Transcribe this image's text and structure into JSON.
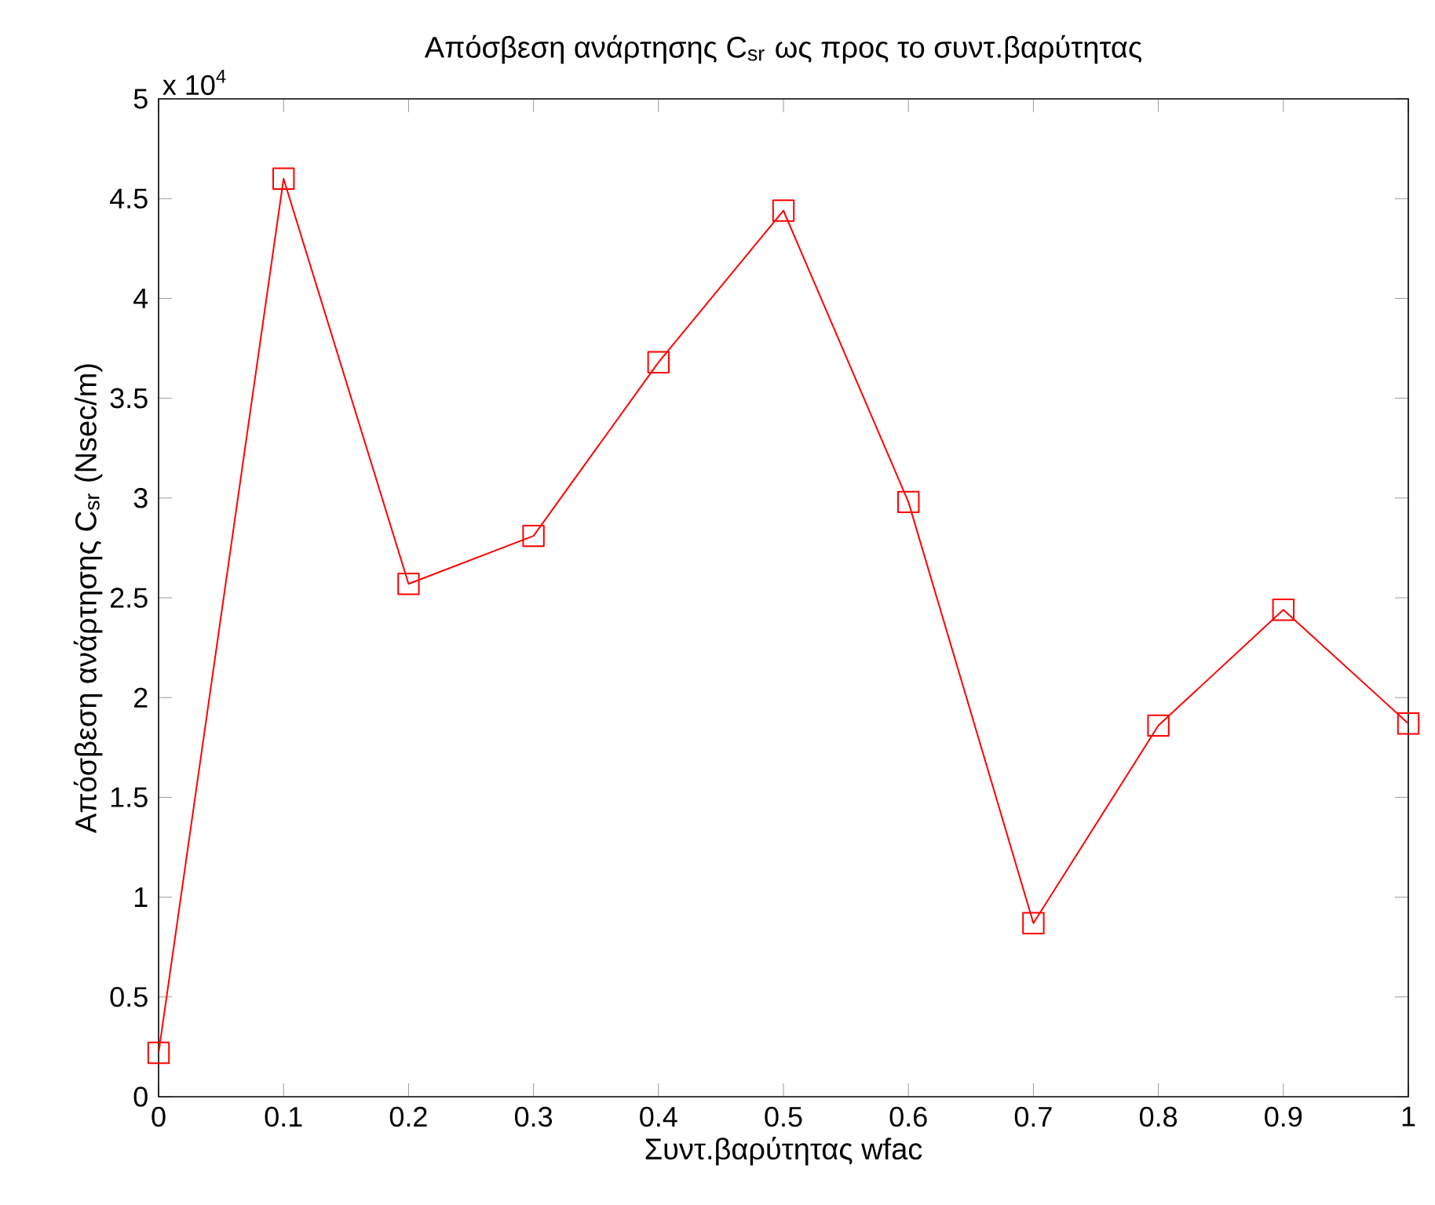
{
  "chart_data": {
    "type": "line",
    "title": "Απόσβεση ανάρτησης C$_{sr}$ ως προς το συντ.βαρύτητας",
    "xlabel": "Συντ.βαρύτητας wfac",
    "ylabel": "Απόσβεση ανάρτησης C$_{sr}$  (Nsec/m)",
    "annotations": [
      "x 10$^{4}$"
    ],
    "x": [
      0,
      0.1,
      0.2,
      0.3,
      0.4,
      0.5,
      0.6,
      0.7,
      0.8,
      0.9,
      1
    ],
    "series": [
      {
        "color": "#ff0000",
        "values": [
          0.22,
          4.6,
          2.57,
          2.81,
          3.68,
          4.44,
          2.98,
          0.87,
          1.86,
          2.44,
          1.87
        ]
      }
    ],
    "marker": "square",
    "line_style": "solid",
    "xlim": [
      0,
      1
    ],
    "ylim": [
      0,
      5
    ],
    "xticks": [
      0,
      0.1,
      0.2,
      0.3,
      0.4,
      0.5,
      0.6,
      0.7,
      0.8,
      0.9,
      1
    ],
    "yticks": [
      0,
      0.5,
      1,
      1.5,
      2,
      2.5,
      3,
      3.5,
      4,
      4.5,
      5
    ]
  }
}
